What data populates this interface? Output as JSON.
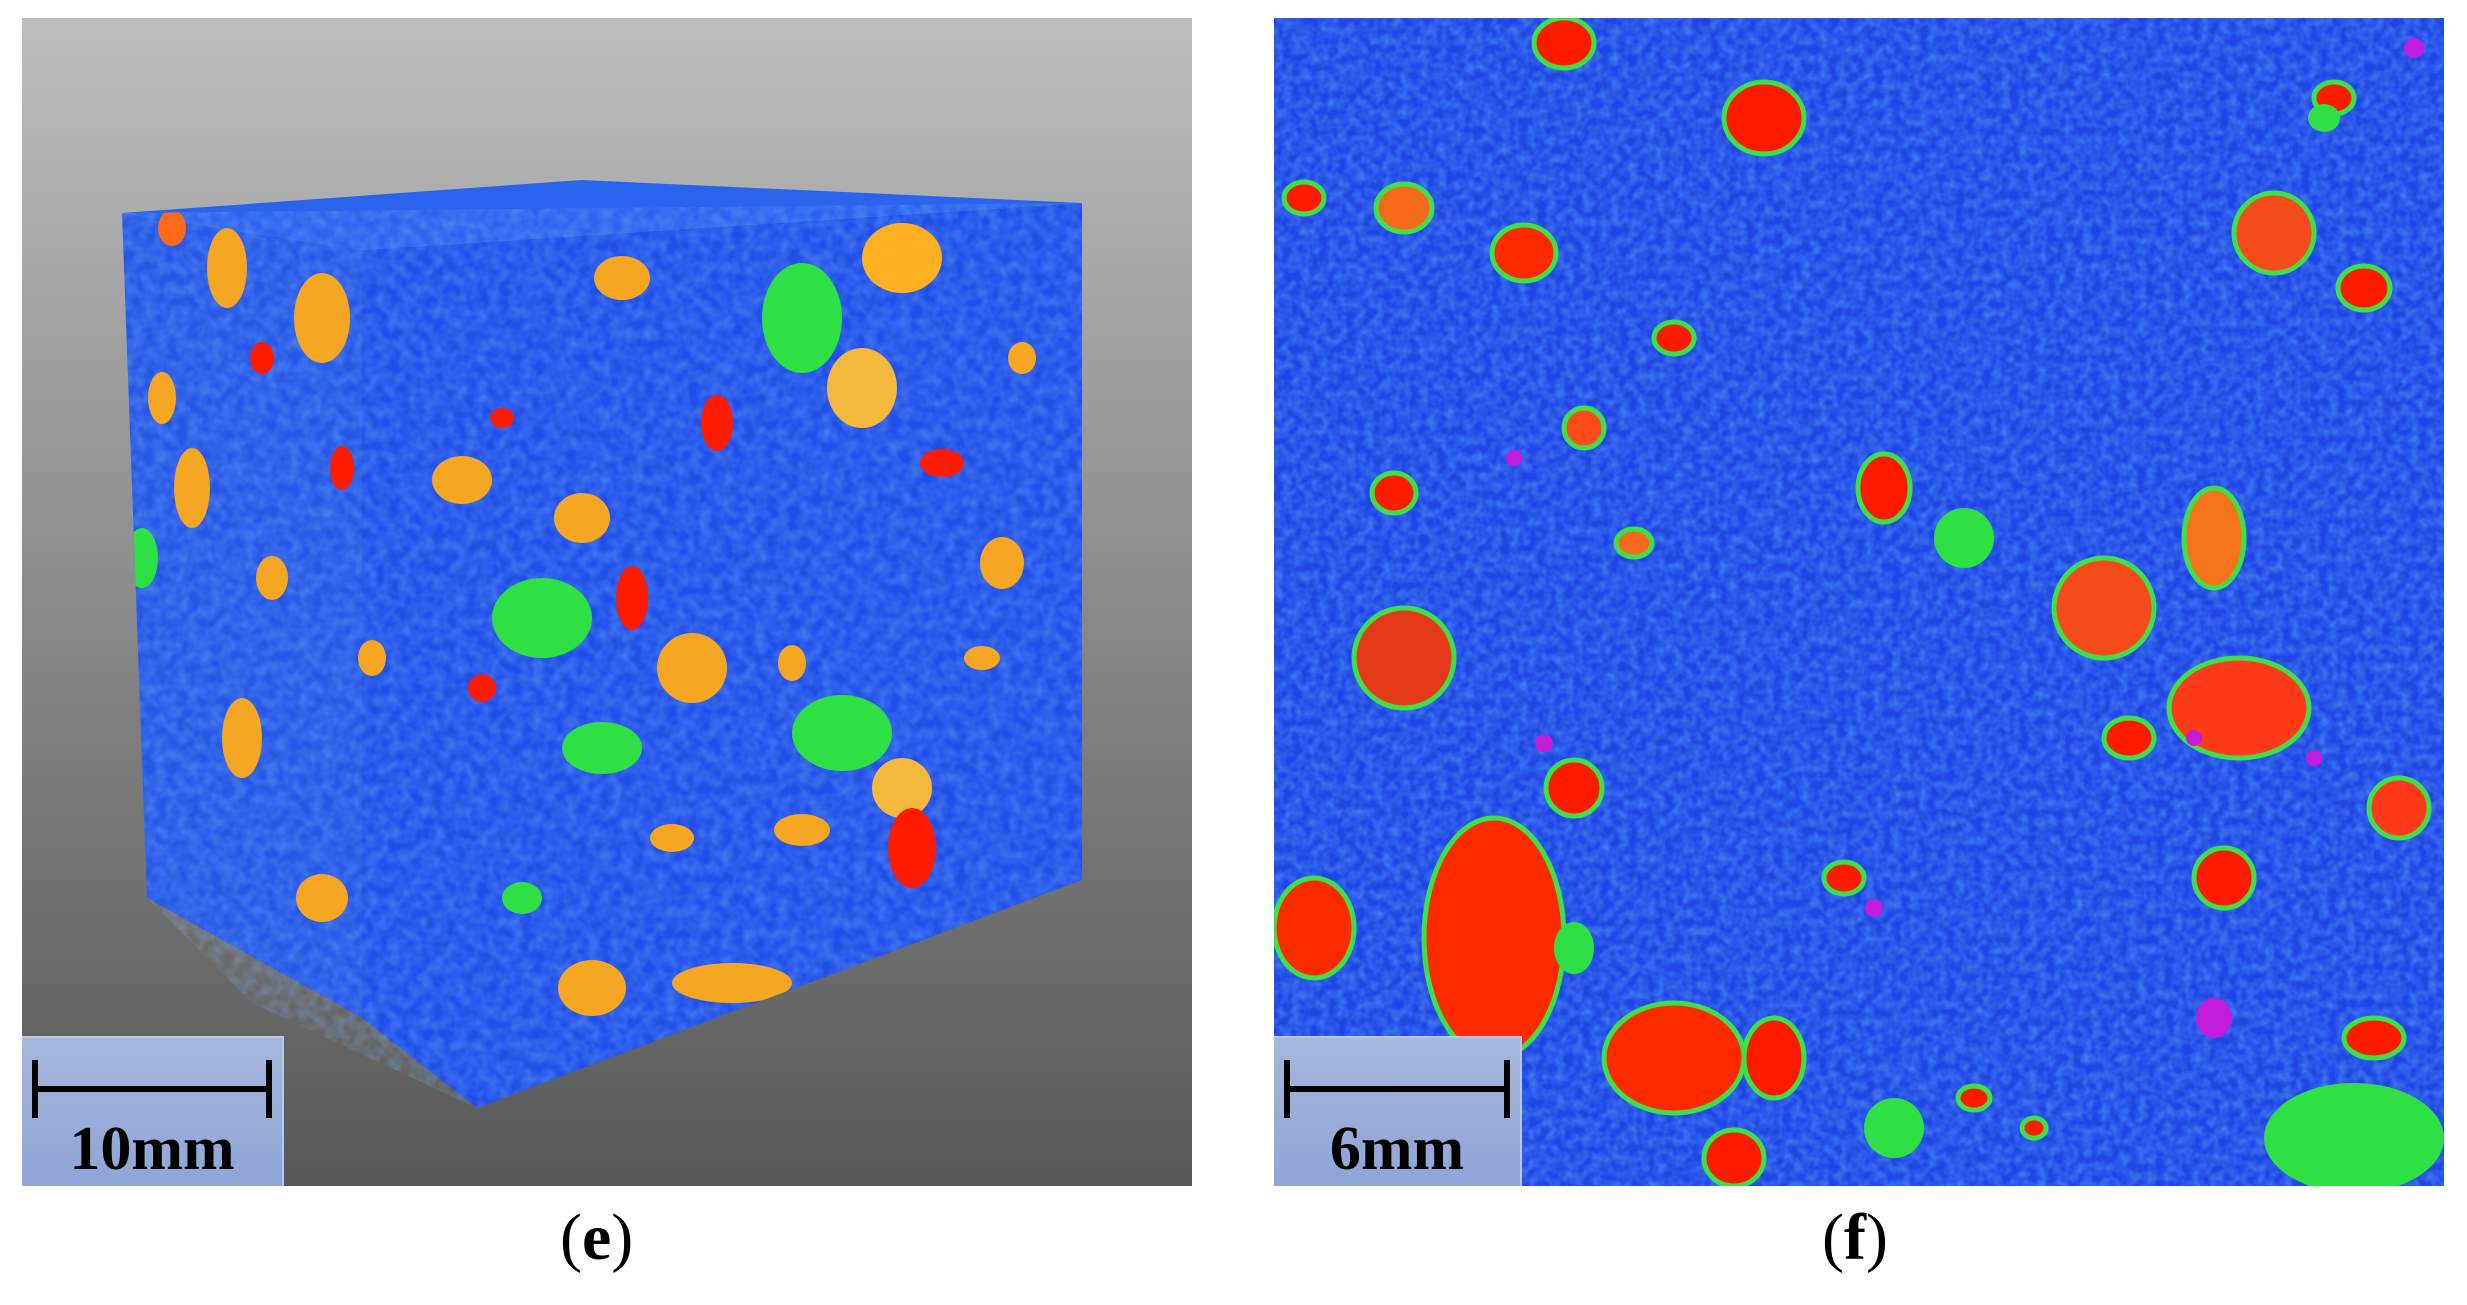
{
  "panels": [
    {
      "id": "e",
      "scale_label": "10mm",
      "caption_open": "(",
      "caption_letter": "e",
      "caption_close": ")"
    },
    {
      "id": "f",
      "scale_label": "6mm",
      "caption_open": "(",
      "caption_letter": "f",
      "caption_close": ")"
    }
  ],
  "colors": {
    "matrix": "#1f4fe6",
    "aggregate_red": "#ff1a00",
    "aggregate_orange": "#f5a623",
    "aggregate_green": "#2ee043",
    "pore_magenta": "#c21bd9",
    "background_gradient_top": "#bdbdbd",
    "background_gradient_bottom": "#575757",
    "scalebar_fill": "#a6b7dc"
  }
}
